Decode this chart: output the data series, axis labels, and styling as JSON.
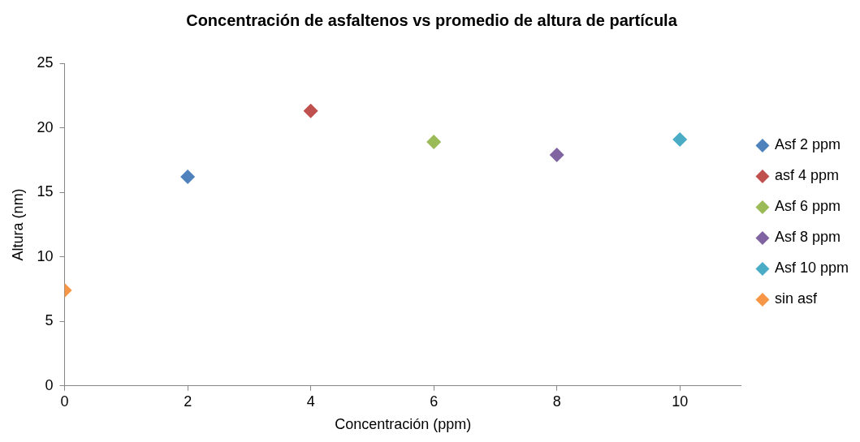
{
  "chart_data": {
    "type": "scatter",
    "title": "Concentración de asfaltenos vs promedio de altura de partícula",
    "xlabel": "Concentración (ppm)",
    "ylabel": "Altura (nm)",
    "xlim": [
      0,
      11
    ],
    "xticks": [
      0,
      2,
      4,
      6,
      8,
      10
    ],
    "ylim": [
      0,
      25
    ],
    "yticks": [
      0,
      5,
      10,
      15,
      20,
      25
    ],
    "grid": false,
    "legend": "right",
    "marker": "diamond",
    "series": [
      {
        "name": "Asf 2 ppm",
        "color": "#4f81bd",
        "x": [
          2
        ],
        "values": [
          16.2
        ]
      },
      {
        "name": "asf 4 ppm",
        "color": "#c0504d",
        "x": [
          4
        ],
        "values": [
          21.3
        ]
      },
      {
        "name": "Asf 6 ppm",
        "color": "#9bbb59",
        "x": [
          6
        ],
        "values": [
          18.9
        ]
      },
      {
        "name": "Asf 8 ppm",
        "color": "#8064a2",
        "x": [
          8
        ],
        "values": [
          17.9
        ]
      },
      {
        "name": "Asf 10 ppm",
        "color": "#4bacc6",
        "x": [
          10
        ],
        "values": [
          19.1
        ]
      },
      {
        "name": "sin asf",
        "color": "#f79646",
        "x": [
          0
        ],
        "values": [
          7.4
        ]
      }
    ]
  }
}
